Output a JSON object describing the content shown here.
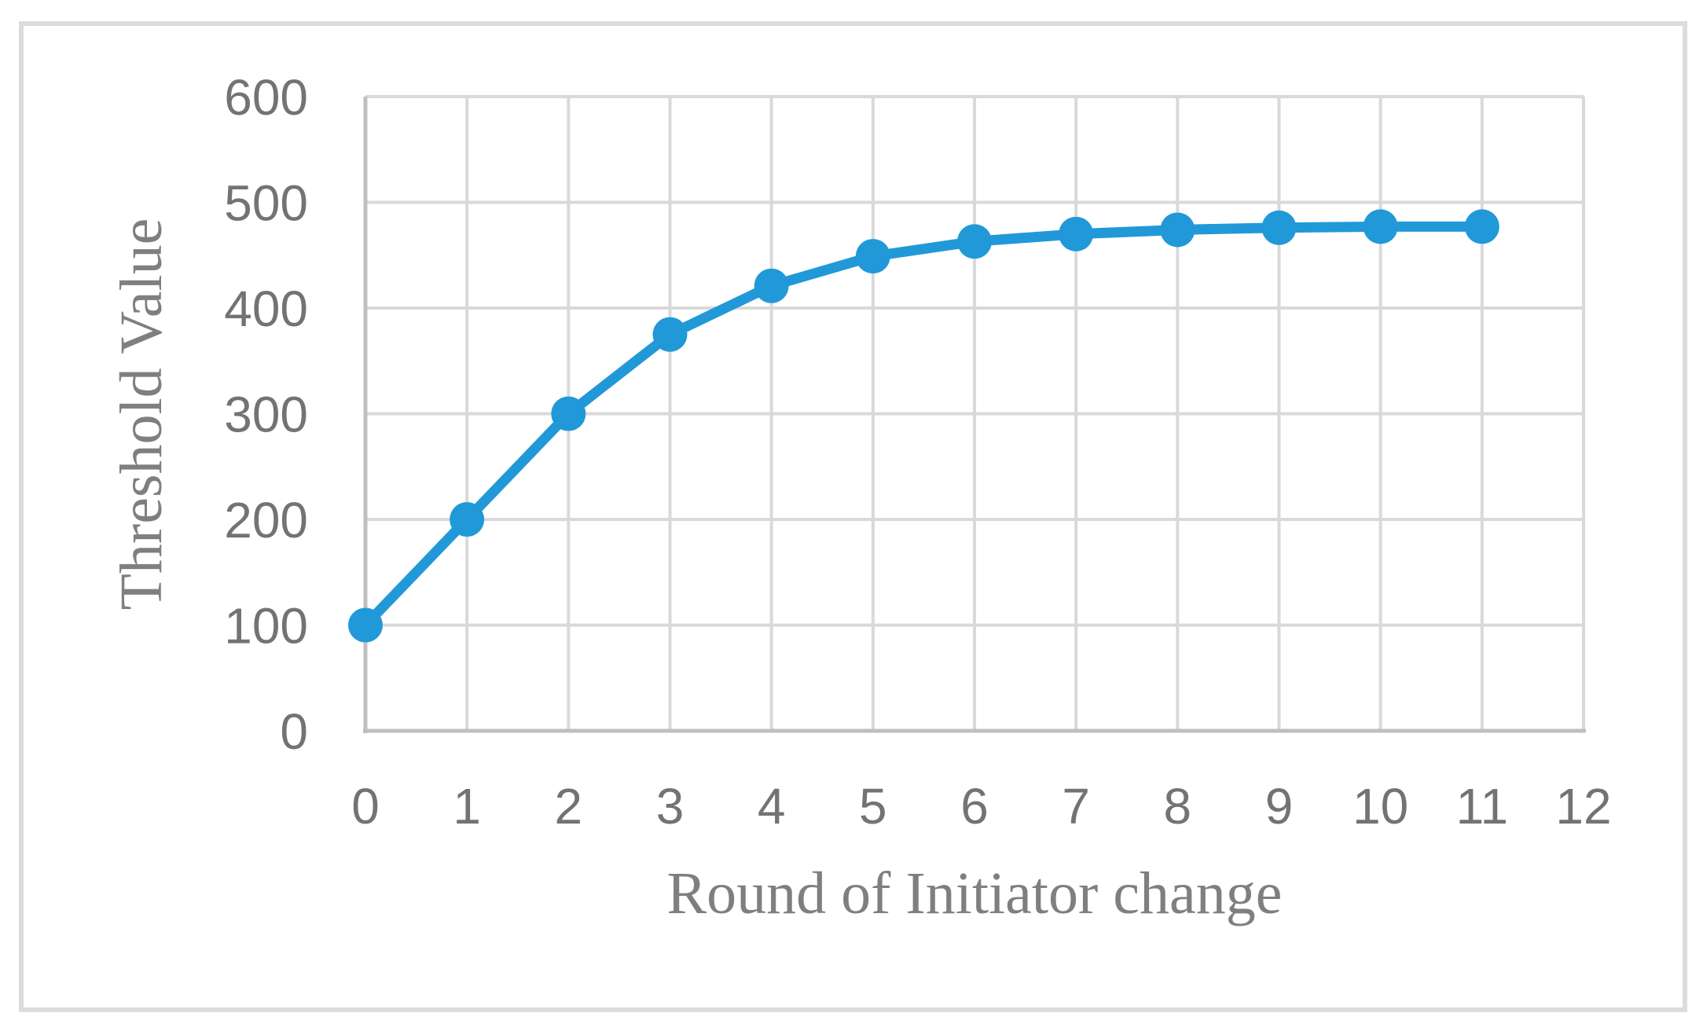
{
  "figure": {
    "background": "#FFFFFF",
    "border_color": "#DCDCDC"
  },
  "chart_data": {
    "type": "line",
    "title": "",
    "xlabel": "Round of Initiator change",
    "ylabel": "Threshold Value",
    "series": [
      {
        "name": "Threshold Value",
        "x": [
          0,
          1,
          2,
          3,
          4,
          5,
          6,
          7,
          8,
          9,
          10,
          11
        ],
        "values": [
          100,
          200,
          300,
          375,
          421,
          449,
          463,
          470,
          474,
          476,
          477,
          477
        ]
      }
    ],
    "xlim": [
      0,
      12
    ],
    "ylim": [
      0,
      600
    ],
    "x_ticks": [
      "0",
      "1",
      "2",
      "3",
      "4",
      "5",
      "6",
      "7",
      "8",
      "9",
      "10",
      "11",
      "12"
    ],
    "y_ticks": [
      "0",
      "100",
      "200",
      "300",
      "400",
      "500",
      "600"
    ],
    "grid": "both",
    "legend": "none",
    "marker": "circle",
    "line_color": "#2199D8",
    "gridline_color": "#D9D9D9",
    "axis_line_color": "#BFBFBF",
    "tick_label_color": "#737373",
    "axis_title_color": "#7F7F7F"
  }
}
